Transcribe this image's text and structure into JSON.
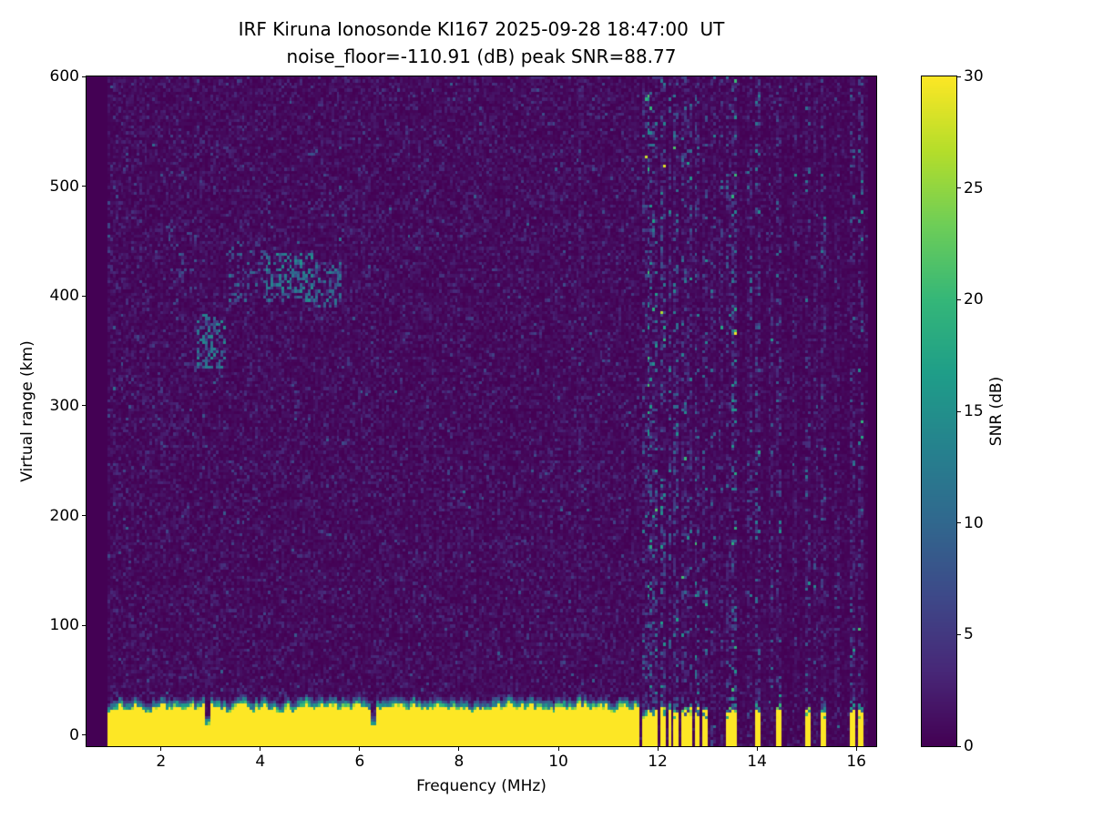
{
  "title_line1": "IRF Kiruna Ionosonde KI167 2025-09-28 18:47:00  UT",
  "title_line2": "noise_floor=-110.91 (dB) peak SNR=88.77",
  "colors": {
    "background": "#ffffff",
    "spine": "#000000",
    "text": "#000000",
    "heatmap_low": "#440154",
    "heatmap_high": "#fde725"
  },
  "chart_data": {
    "type": "heatmap",
    "title": "IRF Kiruna Ionosonde KI167 2025-09-28 18:47:00  UT",
    "subtitle": "noise_floor=-110.91 (dB) peak SNR=88.77",
    "xlabel": "Frequency (MHz)",
    "ylabel": "Virtual range (km)",
    "colorbar_label": "SNR (dB)",
    "xlim": [
      0.5,
      16.4
    ],
    "ylim": [
      -10,
      600
    ],
    "x_ticks": [
      2,
      4,
      6,
      8,
      10,
      12,
      14,
      16
    ],
    "y_ticks": [
      0,
      100,
      200,
      300,
      400,
      500,
      600
    ],
    "colorbar_ticks": [
      0,
      5,
      10,
      15,
      20,
      25,
      30
    ],
    "colorbar_range": [
      0,
      30
    ],
    "colormap": "viridis",
    "viridis_stops": [
      "#440154",
      "#482878",
      "#3e4989",
      "#31688e",
      "#26828e",
      "#1f9e89",
      "#35b779",
      "#6ece58",
      "#b5de2b",
      "#fde725"
    ],
    "features": {
      "data_freq_range": [
        0.9,
        16.25
      ],
      "background_noise_db": 1.15,
      "ground_clutter": {
        "freq_max": 11.65,
        "top_km_min": 17,
        "top_km_max": 33,
        "fringe_km": 9,
        "snr_db": 30
      },
      "ground_notches": [
        2.95,
        6.27
      ],
      "echo_patches": [
        {
          "freq": [
            2.7,
            3.3
          ],
          "range": [
            335,
            385
          ],
          "snr_db": 13,
          "density": 0.35
        },
        {
          "freq": [
            3.35,
            4.1
          ],
          "range": [
            395,
            450
          ],
          "snr_db": 10,
          "density": 0.18
        },
        {
          "freq": [
            4.1,
            5.05
          ],
          "range": [
            395,
            440
          ],
          "snr_db": 14,
          "density": 0.4
        },
        {
          "freq": [
            5.05,
            5.65
          ],
          "range": [
            388,
            430
          ],
          "snr_db": 12,
          "density": 0.28
        },
        {
          "freq": [
            2.15,
            2.7
          ],
          "range": [
            400,
            465
          ],
          "snr_db": 8,
          "density": 0.12
        }
      ],
      "interference_stripes": [
        {
          "freq": 10.45,
          "strength": 0.25,
          "ground": false
        },
        {
          "freq": 11.72,
          "strength": 0.55,
          "ground": true
        },
        {
          "freq": 11.84,
          "strength": 0.9,
          "ground": true
        },
        {
          "freq": 11.97,
          "strength": 0.7,
          "ground": true
        },
        {
          "freq": 12.1,
          "strength": 0.8,
          "ground": true
        },
        {
          "freq": 12.24,
          "strength": 0.6,
          "ground": true
        },
        {
          "freq": 12.38,
          "strength": 0.7,
          "ground": true
        },
        {
          "freq": 12.52,
          "strength": 0.6,
          "ground": true
        },
        {
          "freq": 12.66,
          "strength": 0.5,
          "ground": true
        },
        {
          "freq": 12.8,
          "strength": 0.6,
          "ground": true
        },
        {
          "freq": 12.95,
          "strength": 0.5,
          "ground": true
        },
        {
          "freq": 13.1,
          "strength": 0.4,
          "ground": false
        },
        {
          "freq": 13.25,
          "strength": 0.4,
          "ground": false
        },
        {
          "freq": 13.42,
          "strength": 0.5,
          "ground": true
        },
        {
          "freq": 13.56,
          "strength": 0.9,
          "ground": true
        },
        {
          "freq": 13.86,
          "strength": 0.4,
          "ground": false
        },
        {
          "freq": 14.0,
          "strength": 0.6,
          "ground": true
        },
        {
          "freq": 14.3,
          "strength": 0.4,
          "ground": false
        },
        {
          "freq": 14.45,
          "strength": 0.55,
          "ground": true
        },
        {
          "freq": 14.74,
          "strength": 0.3,
          "ground": false
        },
        {
          "freq": 15.03,
          "strength": 0.5,
          "ground": true
        },
        {
          "freq": 15.18,
          "strength": 0.3,
          "ground": false
        },
        {
          "freq": 15.33,
          "strength": 0.45,
          "ground": true
        },
        {
          "freq": 15.62,
          "strength": 0.3,
          "ground": false
        },
        {
          "freq": 15.91,
          "strength": 0.5,
          "ground": true
        },
        {
          "freq": 16.06,
          "strength": 0.6,
          "ground": true
        }
      ]
    }
  }
}
